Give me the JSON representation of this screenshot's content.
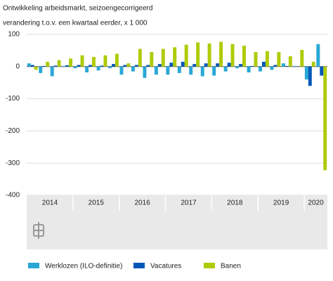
{
  "chart_data": {
    "type": "bar",
    "title": "Ontwikkeling arbeidsmarkt, seizoengecorrigeerd",
    "subtitle": "verandering t.o.v. een kwartaal eerder, x 1 000",
    "categories": [
      "2014",
      "2014",
      "2014",
      "2014",
      "2015",
      "2015",
      "2015",
      "2015",
      "2016",
      "2016",
      "2016",
      "2016",
      "2017",
      "2017",
      "2017",
      "2017",
      "2018",
      "2018",
      "2018",
      "2018",
      "2019",
      "2019",
      "2019",
      "2019",
      "2020",
      "2020"
    ],
    "series": [
      {
        "name": "Werklozen (ILO-definitie)",
        "color": "#29a8d6",
        "values": [
          10,
          -20,
          -30,
          2,
          -5,
          -18,
          -12,
          -5,
          -25,
          -15,
          -35,
          -25,
          -25,
          -20,
          -25,
          -30,
          -28,
          -15,
          -5,
          -18,
          -15,
          -10,
          10,
          2,
          -40,
          70
        ]
      },
      {
        "name": "Vacatures",
        "color": "#0058b8",
        "values": [
          5,
          2,
          3,
          4,
          5,
          5,
          3,
          8,
          5,
          5,
          5,
          8,
          12,
          15,
          8,
          10,
          10,
          12,
          8,
          2,
          15,
          5,
          2,
          0,
          -60,
          -28
        ]
      },
      {
        "name": "Banen",
        "color": "#afcb05",
        "values": [
          -10,
          15,
          20,
          25,
          35,
          30,
          35,
          40,
          10,
          55,
          45,
          55,
          60,
          68,
          75,
          72,
          77,
          70,
          65,
          45,
          48,
          45,
          32,
          52,
          15,
          -322
        ]
      }
    ],
    "ylim": [
      -400,
      100
    ],
    "yticks": [
      100,
      0,
      -100,
      -200,
      -300,
      -400
    ],
    "grid": true
  }
}
